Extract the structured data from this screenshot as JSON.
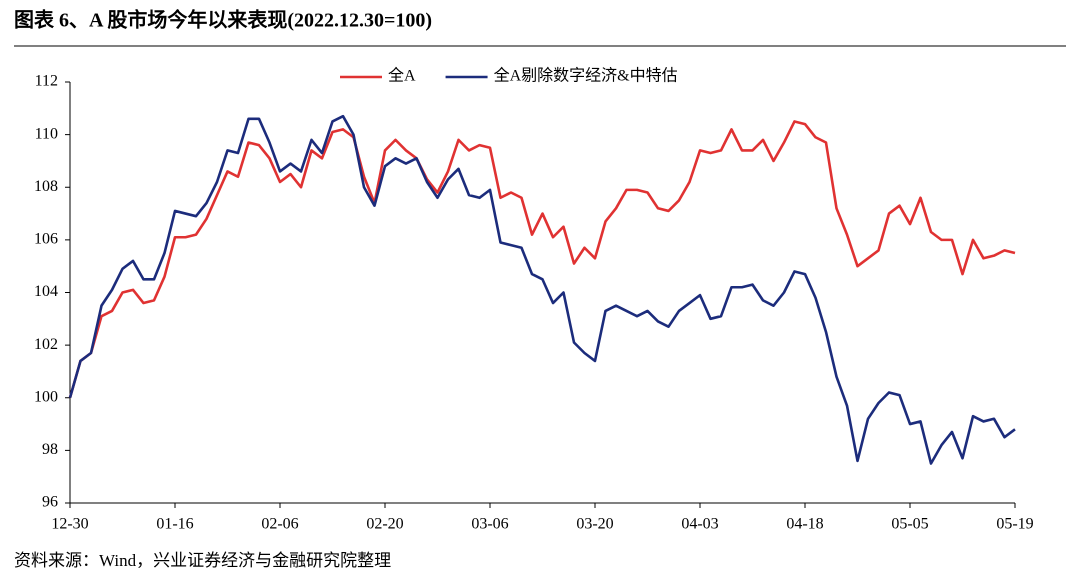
{
  "chart_data": {
    "type": "line",
    "title": "图表 6、A 股市场今年以来表现(2022.12.30=100)",
    "source": "资料来源：Wind，兴业证券经济与金融研究院整理",
    "categories": [
      "12-30",
      null,
      null,
      null,
      null,
      null,
      null,
      null,
      null,
      null,
      "01-16",
      null,
      null,
      null,
      null,
      null,
      null,
      null,
      null,
      null,
      "02-06",
      null,
      null,
      null,
      null,
      null,
      null,
      null,
      null,
      null,
      "02-20",
      null,
      null,
      null,
      null,
      null,
      null,
      null,
      null,
      null,
      "03-06",
      null,
      null,
      null,
      null,
      null,
      null,
      null,
      null,
      null,
      "03-20",
      null,
      null,
      null,
      null,
      null,
      null,
      null,
      null,
      null,
      "04-03",
      null,
      null,
      null,
      null,
      null,
      null,
      null,
      null,
      null,
      "04-18",
      null,
      null,
      null,
      null,
      null,
      null,
      null,
      null,
      null,
      "05-05",
      null,
      null,
      null,
      null,
      null,
      null,
      null,
      null,
      null,
      "05-19"
    ],
    "series": [
      {
        "name": "全A",
        "color": "#e03232",
        "values": [
          100,
          101.4,
          101.7,
          103.1,
          103.3,
          104.0,
          104.1,
          103.6,
          103.7,
          104.6,
          106.1,
          106.1,
          106.2,
          106.8,
          107.7,
          108.6,
          108.4,
          109.7,
          109.6,
          109.1,
          108.2,
          108.5,
          108.0,
          109.4,
          109.1,
          110.1,
          110.2,
          109.9,
          108.4,
          107.4,
          109.4,
          109.8,
          109.4,
          109.1,
          108.3,
          107.8,
          108.6,
          109.8,
          109.4,
          109.6,
          109.5,
          107.6,
          107.8,
          107.6,
          106.2,
          107.0,
          106.1,
          106.5,
          105.1,
          105.7,
          105.3,
          106.7,
          107.2,
          107.9,
          107.9,
          107.8,
          107.2,
          107.1,
          107.5,
          108.2,
          109.4,
          109.3,
          109.4,
          110.2,
          109.4,
          109.4,
          109.8,
          109.0,
          109.7,
          110.5,
          110.4,
          109.9,
          109.7,
          107.2,
          106.2,
          105.0,
          105.3,
          105.6,
          107.0,
          107.3,
          106.6,
          107.6,
          106.3,
          106.0,
          106.0,
          104.7,
          106.0,
          105.3,
          105.4,
          105.6,
          105.5
        ]
      },
      {
        "name": "全A剔除数字经济&中特估",
        "color": "#1c2c7c",
        "values": [
          100,
          101.4,
          101.7,
          103.5,
          104.1,
          104.9,
          105.2,
          104.5,
          104.5,
          105.5,
          107.1,
          107.0,
          106.9,
          107.4,
          108.2,
          109.4,
          109.3,
          110.6,
          110.6,
          109.7,
          108.6,
          108.9,
          108.6,
          109.8,
          109.3,
          110.5,
          110.7,
          110.0,
          108.0,
          107.3,
          108.8,
          109.1,
          108.9,
          109.1,
          108.2,
          107.6,
          108.3,
          108.7,
          107.7,
          107.6,
          107.9,
          105.9,
          105.8,
          105.7,
          104.7,
          104.5,
          103.6,
          104.0,
          102.1,
          101.7,
          101.4,
          103.3,
          103.5,
          103.3,
          103.1,
          103.3,
          102.9,
          102.7,
          103.3,
          103.6,
          103.9,
          103.0,
          103.1,
          104.2,
          104.2,
          104.3,
          103.7,
          103.5,
          104.0,
          104.8,
          104.7,
          103.8,
          102.5,
          100.8,
          99.7,
          97.6,
          99.2,
          99.8,
          100.2,
          100.1,
          99.0,
          99.1,
          97.5,
          98.2,
          98.7,
          97.7,
          99.3,
          99.1,
          99.2,
          98.5,
          98.8
        ]
      }
    ],
    "ylim": [
      96,
      112
    ],
    "yticks": [
      96,
      98,
      100,
      102,
      104,
      106,
      108,
      110,
      112
    ],
    "legend": "top"
  }
}
